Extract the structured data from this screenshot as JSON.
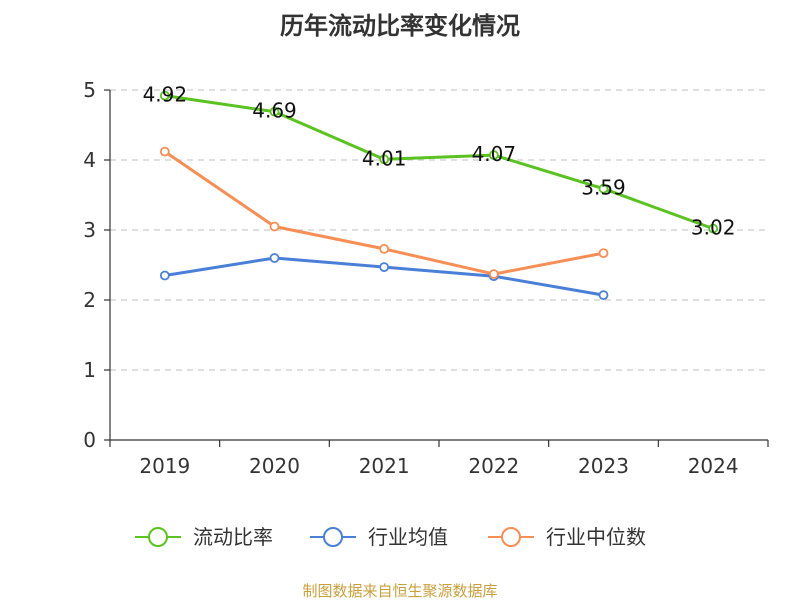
{
  "chart_data": {
    "type": "line",
    "title": "历年流动比率变化情况",
    "categories": [
      "2019",
      "2020",
      "2021",
      "2022",
      "2023",
      "2024"
    ],
    "ylim": [
      0,
      5
    ],
    "yticks": [
      0,
      1,
      2,
      3,
      4,
      5
    ],
    "grid": true,
    "legend_position": "bottom",
    "series": [
      {
        "name": "流动比率",
        "color": "#5ac221",
        "values": [
          4.92,
          4.69,
          4.01,
          4.07,
          3.59,
          3.02
        ],
        "labels": [
          "4.92",
          "4.69",
          "4.01",
          "4.07",
          "3.59",
          "3.02"
        ]
      },
      {
        "name": "行业均值",
        "color": "#4a7fd8",
        "values": [
          2.35,
          2.6,
          2.47,
          2.34,
          2.07,
          null
        ]
      },
      {
        "name": "行业中位数",
        "color": "#f68e55",
        "values": [
          4.12,
          3.05,
          2.73,
          2.37,
          2.67,
          null
        ]
      }
    ]
  },
  "source": "制图数据来自恒生聚源数据库"
}
